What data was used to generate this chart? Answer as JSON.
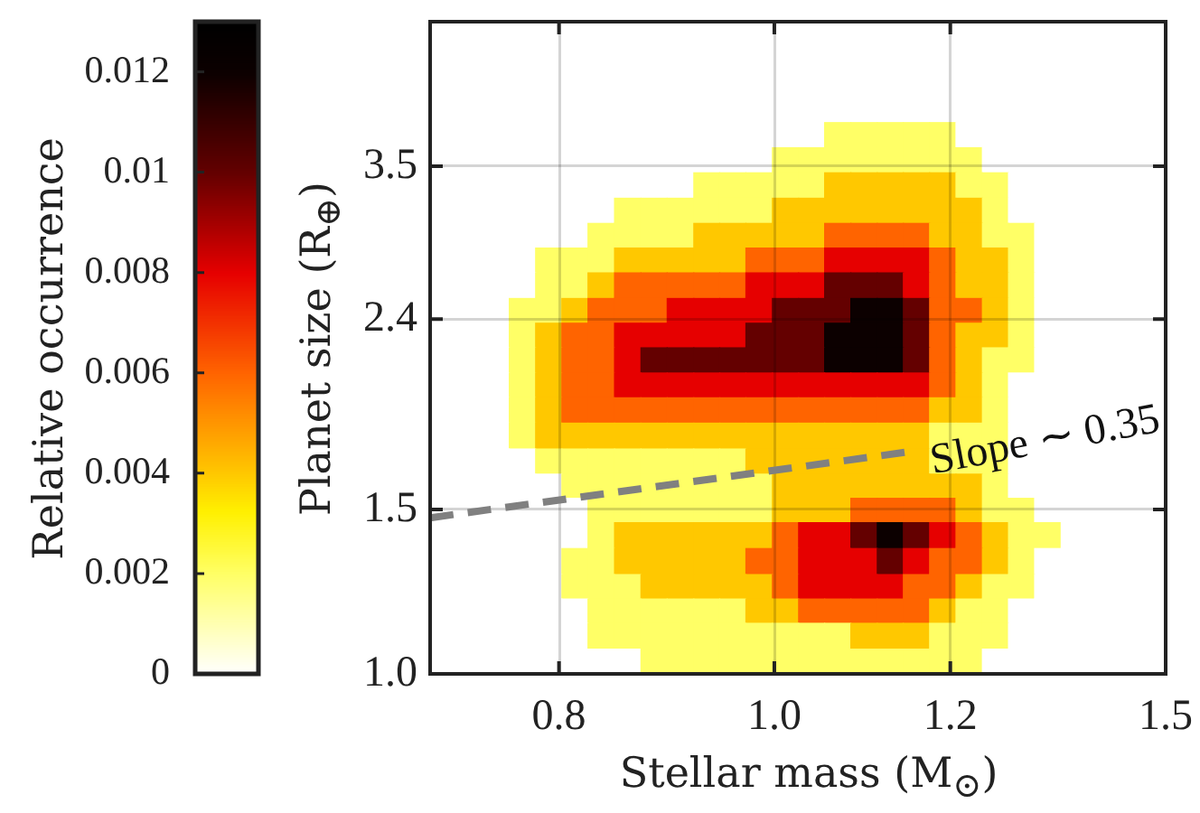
{
  "chart_data": {
    "type": "heatmap",
    "xlabel": "Stellar mass (M$_{⊙}$)",
    "ylabel": "Planet size (R$_{⊕}$)",
    "clabel": "Relative occurrence",
    "x": [
      0.71,
      0.729,
      0.749,
      0.77,
      0.791,
      0.813,
      0.835,
      0.859,
      0.882,
      0.907,
      0.932,
      0.957,
      0.984,
      1.011,
      1.039,
      1.067,
      1.097,
      1.127,
      1.158,
      1.19,
      1.223,
      1.257,
      1.291,
      1.327,
      1.364,
      1.401,
      1.44,
      1.48
    ],
    "y": [
      4.85,
      4.56,
      4.28,
      4.03,
      3.78,
      3.56,
      3.34,
      3.14,
      2.95,
      2.78,
      2.61,
      2.45,
      2.31,
      2.17,
      2.04,
      1.92,
      1.8,
      1.69,
      1.59,
      1.5,
      1.41,
      1.32,
      1.24,
      1.17,
      1.1,
      1.03
    ],
    "cells": [
      [
        0,
        0,
        0,
        0,
        0,
        0,
        0,
        0,
        0,
        0,
        0,
        0,
        0,
        0,
        0,
        0,
        0,
        0,
        0,
        0,
        0,
        0,
        0,
        0,
        0,
        0,
        0,
        0
      ],
      [
        0,
        0,
        0,
        0,
        0,
        0,
        0,
        0,
        0,
        0,
        0,
        0,
        0,
        0,
        0,
        0,
        0,
        0,
        0,
        0,
        0,
        0,
        0,
        0,
        0,
        0,
        0,
        0
      ],
      [
        0,
        0,
        0,
        0,
        0,
        0,
        0,
        0,
        0,
        0,
        0,
        0,
        0,
        0,
        0,
        0,
        0,
        0,
        0,
        0,
        0,
        0,
        0,
        0,
        0,
        0,
        0,
        0
      ],
      [
        0,
        0,
        0,
        0,
        0,
        0,
        0,
        0,
        0,
        0,
        0,
        0,
        0,
        0,
        0,
        0,
        0,
        0,
        0,
        0,
        0,
        0,
        0,
        0,
        0,
        0,
        0,
        0
      ],
      [
        0,
        0,
        0,
        0,
        0,
        0,
        0,
        0,
        0,
        0,
        0,
        0,
        0,
        0,
        0,
        0.002,
        0.002,
        0.002,
        0.002,
        0.002,
        0,
        0,
        0,
        0,
        0,
        0,
        0,
        0
      ],
      [
        0,
        0,
        0,
        0,
        0,
        0,
        0,
        0,
        0,
        0,
        0,
        0,
        0,
        0.002,
        0.002,
        0.002,
        0.002,
        0.002,
        0.002,
        0.002,
        0.002,
        0,
        0,
        0,
        0,
        0,
        0,
        0
      ],
      [
        0,
        0,
        0,
        0,
        0,
        0,
        0,
        0,
        0,
        0,
        0.002,
        0.002,
        0.002,
        0.002,
        0.002,
        0.004,
        0.004,
        0.004,
        0.004,
        0.004,
        0.002,
        0.002,
        0,
        0,
        0,
        0,
        0,
        0
      ],
      [
        0,
        0,
        0,
        0,
        0,
        0,
        0,
        0.002,
        0.002,
        0.002,
        0.002,
        0.002,
        0.002,
        0.004,
        0.004,
        0.004,
        0.004,
        0.004,
        0.004,
        0.004,
        0.004,
        0.002,
        0,
        0,
        0,
        0,
        0,
        0
      ],
      [
        0,
        0,
        0,
        0,
        0,
        0,
        0.002,
        0.002,
        0.002,
        0.002,
        0.004,
        0.004,
        0.004,
        0.004,
        0.004,
        0.006,
        0.006,
        0.006,
        0.006,
        0.004,
        0.004,
        0.002,
        0.002,
        0,
        0,
        0,
        0,
        0
      ],
      [
        0,
        0,
        0,
        0,
        0.002,
        0.002,
        0.002,
        0.004,
        0.004,
        0.004,
        0.004,
        0.004,
        0.006,
        0.006,
        0.006,
        0.008,
        0.008,
        0.008,
        0.008,
        0.006,
        0.004,
        0.004,
        0.002,
        0,
        0,
        0,
        0,
        0
      ],
      [
        0,
        0,
        0,
        0,
        0.002,
        0.002,
        0.004,
        0.006,
        0.006,
        0.006,
        0.006,
        0.006,
        0.008,
        0.008,
        0.008,
        0.01,
        0.01,
        0.01,
        0.008,
        0.006,
        0.004,
        0.004,
        0.002,
        0,
        0,
        0,
        0,
        0
      ],
      [
        0,
        0,
        0,
        0.002,
        0.002,
        0.004,
        0.006,
        0.006,
        0.006,
        0.008,
        0.008,
        0.008,
        0.008,
        0.01,
        0.01,
        0.01,
        0.012,
        0.012,
        0.01,
        0.006,
        0.006,
        0.004,
        0.002,
        0,
        0,
        0,
        0,
        0
      ],
      [
        0,
        0,
        0,
        0.002,
        0.004,
        0.006,
        0.006,
        0.008,
        0.008,
        0.008,
        0.008,
        0.008,
        0.01,
        0.01,
        0.01,
        0.012,
        0.012,
        0.012,
        0.01,
        0.006,
        0.004,
        0.004,
        0.002,
        0,
        0,
        0,
        0,
        0
      ],
      [
        0,
        0,
        0,
        0.002,
        0.004,
        0.006,
        0.006,
        0.008,
        0.01,
        0.01,
        0.01,
        0.01,
        0.01,
        0.01,
        0.01,
        0.012,
        0.012,
        0.012,
        0.01,
        0.006,
        0.004,
        0.002,
        0.002,
        0,
        0,
        0,
        0,
        0
      ],
      [
        0,
        0,
        0,
        0.002,
        0.004,
        0.006,
        0.006,
        0.008,
        0.008,
        0.008,
        0.008,
        0.008,
        0.008,
        0.008,
        0.008,
        0.008,
        0.008,
        0.008,
        0.008,
        0.006,
        0.004,
        0.002,
        0,
        0,
        0,
        0,
        0,
        0
      ],
      [
        0,
        0,
        0,
        0.002,
        0.004,
        0.006,
        0.006,
        0.006,
        0.006,
        0.006,
        0.006,
        0.006,
        0.006,
        0.006,
        0.006,
        0.006,
        0.006,
        0.006,
        0.006,
        0.004,
        0.004,
        0.002,
        0,
        0,
        0,
        0,
        0,
        0
      ],
      [
        0,
        0,
        0,
        0.002,
        0.004,
        0.004,
        0.004,
        0.004,
        0.004,
        0.004,
        0.004,
        0.004,
        0.004,
        0.004,
        0.004,
        0.004,
        0.004,
        0.004,
        0.004,
        0.002,
        0.002,
        0.002,
        0,
        0,
        0,
        0,
        0,
        0
      ],
      [
        0,
        0,
        0,
        0,
        0.002,
        0.002,
        0.002,
        0.002,
        0.002,
        0.002,
        0.002,
        0.002,
        0.004,
        0.004,
        0.004,
        0.004,
        0.004,
        0.004,
        0.004,
        0.002,
        0.002,
        0.002,
        0,
        0,
        0,
        0,
        0,
        0
      ],
      [
        0,
        0,
        0,
        0,
        0,
        0.002,
        0.002,
        0.002,
        0.002,
        0.002,
        0.002,
        0.002,
        0.002,
        0.004,
        0.004,
        0.004,
        0.004,
        0.004,
        0.004,
        0.004,
        0.004,
        0.002,
        0,
        0,
        0,
        0,
        0,
        0
      ],
      [
        0,
        0,
        0,
        0,
        0,
        0,
        0.002,
        0.002,
        0.002,
        0.002,
        0.002,
        0.002,
        0.002,
        0.004,
        0.004,
        0.004,
        0.006,
        0.006,
        0.006,
        0.006,
        0.004,
        0.002,
        0.002,
        0,
        0,
        0,
        0,
        0
      ],
      [
        0,
        0,
        0,
        0,
        0,
        0,
        0.002,
        0.004,
        0.004,
        0.004,
        0.004,
        0.004,
        0.004,
        0.006,
        0.008,
        0.008,
        0.01,
        0.012,
        0.01,
        0.008,
        0.006,
        0.004,
        0.002,
        0.002,
        0,
        0,
        0,
        0
      ],
      [
        0,
        0,
        0,
        0,
        0,
        0.002,
        0.002,
        0.004,
        0.004,
        0.004,
        0.004,
        0.004,
        0.006,
        0.006,
        0.008,
        0.008,
        0.008,
        0.01,
        0.008,
        0.006,
        0.006,
        0.004,
        0.002,
        0,
        0,
        0,
        0,
        0
      ],
      [
        0,
        0,
        0,
        0,
        0,
        0.002,
        0.002,
        0.002,
        0.004,
        0.004,
        0.004,
        0.004,
        0.004,
        0.006,
        0.008,
        0.008,
        0.008,
        0.008,
        0.006,
        0.006,
        0.004,
        0.002,
        0.002,
        0,
        0,
        0,
        0,
        0
      ],
      [
        0,
        0,
        0,
        0,
        0,
        0,
        0.002,
        0.002,
        0.002,
        0.002,
        0.002,
        0.002,
        0.004,
        0.004,
        0.006,
        0.006,
        0.006,
        0.006,
        0.006,
        0.004,
        0.002,
        0.002,
        0,
        0,
        0,
        0,
        0,
        0
      ],
      [
        0,
        0,
        0,
        0,
        0,
        0,
        0.002,
        0.002,
        0.002,
        0.002,
        0.002,
        0.002,
        0.002,
        0.002,
        0.002,
        0.002,
        0.004,
        0.004,
        0.004,
        0.002,
        0.002,
        0.002,
        0,
        0,
        0,
        0,
        0,
        0
      ],
      [
        0,
        0,
        0,
        0,
        0,
        0,
        0,
        0,
        0.002,
        0.002,
        0.002,
        0.002,
        0.002,
        0.002,
        0.002,
        0.002,
        0.002,
        0.002,
        0.002,
        0.002,
        0.002,
        0,
        0,
        0,
        0,
        0,
        0,
        0
      ]
    ],
    "clim": [
      0,
      0.013
    ],
    "cticks": [
      0,
      0.002,
      0.004,
      0.006,
      0.008,
      0.01,
      0.012
    ],
    "xlim": [
      0.7,
      1.5
    ],
    "xticks": [
      0.8,
      {
        "value": 1,
        "label": "1.0"
      },
      1.2,
      1.5
    ],
    "ylim": [
      1,
      5
    ],
    "yticks": [
      {
        "value": 1,
        "label": "1.0"
      },
      1.5,
      2.4,
      3.5
    ],
    "log": "xy",
    "grid": true,
    "series": [
      {
        "type": "line",
        "x": [
          0.7,
          1.15
        ],
        "values": [
          1.47,
          1.73
        ],
        "color": "#808080",
        "line_style": "dashed",
        "marker": "none"
      }
    ],
    "annotations": [
      "Slope ∼ 0.35"
    ]
  }
}
